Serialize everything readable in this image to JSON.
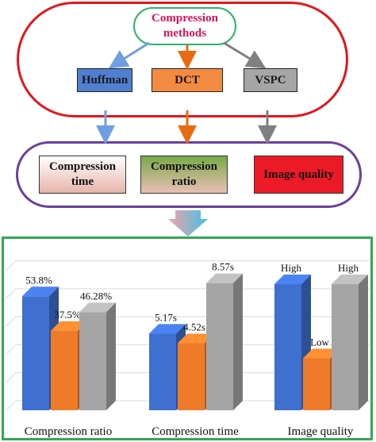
{
  "root": {
    "label": "Compression\nmethods"
  },
  "methods": [
    {
      "label": "Huffman",
      "color": "#4f7fd0"
    },
    {
      "label": "DCT",
      "color": "#f48b42"
    },
    {
      "label": "VSPC",
      "color": "#a6a6a6"
    }
  ],
  "metrics": [
    {
      "label": "Compression\ntime"
    },
    {
      "label": "Compression\nratio"
    },
    {
      "label": "Image quality"
    }
  ],
  "arrow_colors": {
    "huffman": "#6f9fe0",
    "dct": "#e86b12",
    "vspc": "#808080"
  },
  "chart_data": {
    "type": "bar",
    "categories": [
      "Compression ratio",
      "Compression time",
      "Image quality"
    ],
    "series": [
      {
        "color": "#3f6fcf",
        "values": [
          53.8,
          5.17,
          0.85
        ],
        "labels": [
          "53.8%",
          "5.17s",
          "High"
        ]
      },
      {
        "color": "#ee7b2a",
        "values": [
          37.5,
          4.52,
          0.35
        ],
        "labels": [
          "37.5%",
          "4.52s",
          "Low"
        ]
      },
      {
        "color": "#a5a5a5",
        "values": [
          46.28,
          8.57,
          0.85
        ],
        "labels": [
          "46.28%",
          "8.57s",
          "High"
        ]
      }
    ],
    "group_scale_max": [
      70,
      10,
      1
    ],
    "grid": true,
    "legend": "none"
  }
}
